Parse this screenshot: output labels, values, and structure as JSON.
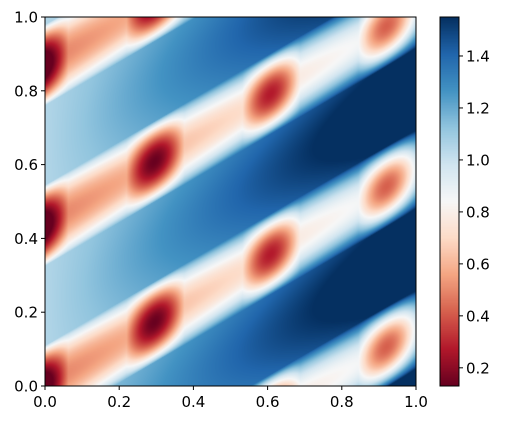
{
  "chart_data": {
    "type": "heatmap",
    "title": "",
    "xlabel": "",
    "ylabel": "",
    "xlim": [
      0.0,
      1.0
    ],
    "ylim": [
      0.0,
      1.0
    ],
    "x_ticks": [
      {
        "value": 0.0,
        "label": "0.0"
      },
      {
        "value": 0.2,
        "label": "0.2"
      },
      {
        "value": 0.4,
        "label": "0.4"
      },
      {
        "value": 0.6,
        "label": "0.6"
      },
      {
        "value": 0.8,
        "label": "0.8"
      },
      {
        "value": 1.0,
        "label": "1.0"
      }
    ],
    "y_ticks": [
      {
        "value": 0.0,
        "label": "0.0"
      },
      {
        "value": 0.2,
        "label": "0.2"
      },
      {
        "value": 0.4,
        "label": "0.4"
      },
      {
        "value": 0.6,
        "label": "0.6"
      },
      {
        "value": 0.8,
        "label": "0.8"
      },
      {
        "value": 1.0,
        "label": "1.0"
      }
    ],
    "colorbar": {
      "colormap": "RdBu",
      "range": [
        0.13,
        1.55
      ],
      "ticks": [
        {
          "value": 0.2,
          "label": "0.2"
        },
        {
          "value": 0.4,
          "label": "0.4"
        },
        {
          "value": 0.6,
          "label": "0.6"
        },
        {
          "value": 0.8,
          "label": "0.8"
        },
        {
          "value": 1.0,
          "label": "1.0"
        },
        {
          "value": 1.2,
          "label": "1.2"
        },
        {
          "value": 1.4,
          "label": "1.4"
        }
      ]
    },
    "colormap_stops": [
      "#67001f",
      "#b2182b",
      "#d6604d",
      "#f4a582",
      "#fddbc7",
      "#f7f7f7",
      "#d1e5f0",
      "#92c5de",
      "#4393c3",
      "#2166ac",
      "#053061"
    ],
    "grid": false,
    "legend": "none"
  }
}
